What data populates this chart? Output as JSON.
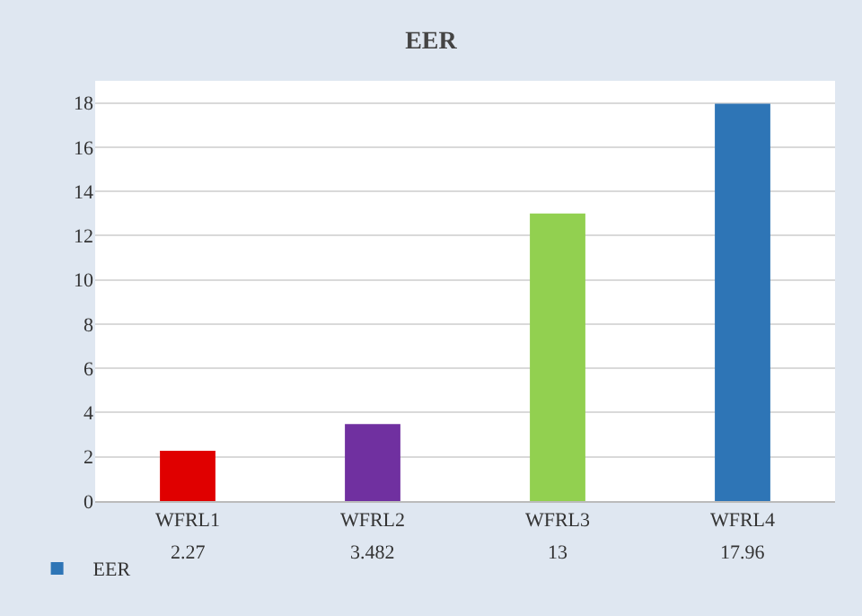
{
  "chart_data": {
    "type": "bar",
    "title": "EER",
    "categories": [
      "WFRL1",
      "WFRL2",
      "WFRL3",
      "WFRL4"
    ],
    "series": [
      {
        "name": "EER",
        "color": "#2e75b6",
        "colors": [
          "#e00000",
          "#7030a0",
          "#92d050",
          "#2e75b6"
        ],
        "values": [
          2.27,
          3.482,
          13,
          17.96
        ]
      }
    ],
    "ylim": [
      0,
      19
    ],
    "yticks": [
      0,
      2,
      4,
      6,
      8,
      10,
      12,
      14,
      16,
      18
    ],
    "grid": "y",
    "legend": "bottom left",
    "data_labels": true
  }
}
